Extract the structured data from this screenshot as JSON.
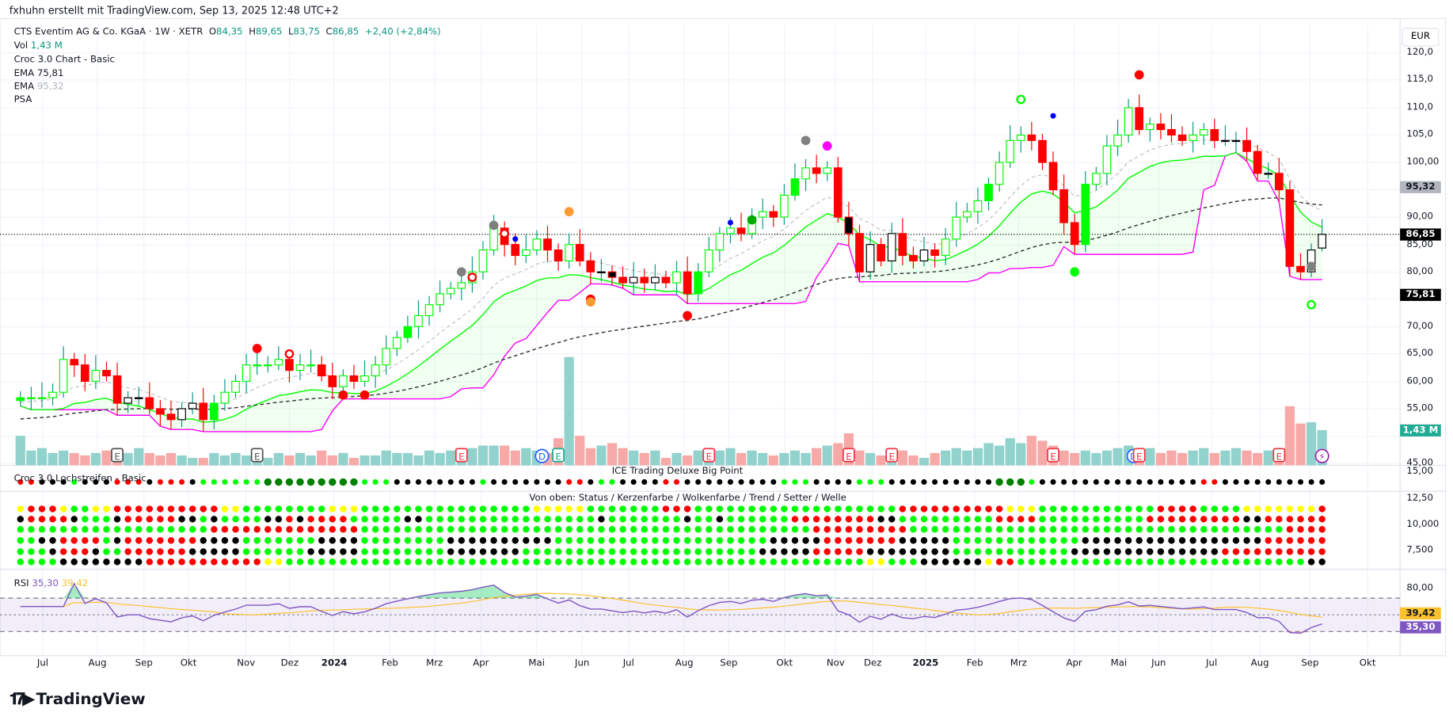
{
  "attribution": "fxhuhn erstellt mit TradingView.com, Sep 13, 2025 12:48 UTC+2",
  "legend": {
    "symbol": "CTS Eventim AG & Co. KGaA · 1W · XETR",
    "o_label": "O",
    "o": "84,35",
    "h_label": "H",
    "h": "89,65",
    "l_label": "L",
    "l": "83,75",
    "c_label": "C",
    "c": "86,85",
    "change": "+2,40 (+2,84%)",
    "vol_label": "Vol",
    "vol": "1,43 M",
    "croc": "Croc 3.0 Chart - Basic",
    "ema1_label": "EMA",
    "ema1": "75,81",
    "ema2_label": "EMA",
    "ema2": "95,32",
    "psa": "PSA"
  },
  "currency": "EUR",
  "price_axis": [
    "120,0",
    "115,0",
    "110,0",
    "105,0",
    "100,00",
    "90,00",
    "85,00",
    "80,00",
    "70,00",
    "65,00",
    "60,00",
    "55,00",
    "45,00"
  ],
  "price_tags": {
    "ema2": "95,32",
    "last": "86,85",
    "ema1": "75,81",
    "vol": "1,43 M"
  },
  "panes": {
    "ice_title": "ICE Trading Deluxe Big Point",
    "loch_title": "Croc 3.0 Lochstreifen - Basic",
    "ice_axis": "15,00",
    "status_title": "Von oben: Status / Kerzenfarbe / Wolkenfarbe / Trend / Setter / Welle",
    "status_axis": [
      "12,50",
      "10,000",
      "7,500"
    ],
    "rsi_label": "RSI",
    "rsi": "35,30",
    "rsi_ma": "39,42",
    "rsi_axis": "80,00"
  },
  "x_axis": [
    "Jul",
    "Aug",
    "Sep",
    "Okt",
    "Nov",
    "Dez",
    "2024",
    "Feb",
    "Mrz",
    "Apr",
    "Mai",
    "Jun",
    "Jul",
    "Aug",
    "Sep",
    "Okt",
    "Nov",
    "Dez",
    "2025",
    "Feb",
    "Mrz",
    "Apr",
    "Mai",
    "Jun",
    "Jul",
    "Aug",
    "Sep",
    "Okt"
  ],
  "brand": "TradingView",
  "colors": {
    "up": "#089981",
    "red": "#ff0000",
    "green": "#00ff00",
    "black": "#000000",
    "yellow": "#ffff00",
    "magenta": "#ff00ff",
    "rsi": "#7e57c2",
    "rsi_ma": "#fbc02d",
    "vol_up": "#92d2cc",
    "vol_down": "#f7a9a7"
  },
  "chart_data": {
    "type": "candlestick",
    "ylim": [
      45,
      120
    ],
    "closes": [
      57,
      57,
      57,
      58,
      64,
      63,
      60,
      62,
      61,
      56,
      57,
      57,
      55,
      54,
      53,
      55,
      56,
      53,
      56,
      58,
      60,
      63,
      63,
      63,
      64,
      62,
      63,
      63,
      61,
      59,
      61,
      60,
      61,
      63,
      66,
      68,
      70,
      72,
      74,
      76,
      77,
      78,
      80,
      84,
      88,
      85,
      83,
      84,
      86,
      84,
      82,
      85,
      82,
      80,
      80,
      79,
      78,
      79,
      78,
      79,
      78,
      80,
      76,
      80,
      84,
      87,
      88,
      87,
      90,
      91,
      90,
      94,
      97,
      99,
      98,
      99,
      90,
      87,
      80,
      85,
      82,
      87,
      83,
      82,
      84,
      83,
      86,
      90,
      91,
      93,
      96,
      100,
      104,
      105,
      104,
      100,
      95,
      89,
      85,
      96,
      98,
      103,
      105,
      110,
      106,
      107,
      106,
      105,
      104,
      105,
      106,
      104,
      104,
      104,
      102,
      98,
      98,
      95,
      81,
      80,
      84,
      86.85
    ],
    "last_ohlc": {
      "o": 84.35,
      "h": 89.65,
      "l": 83.75,
      "c": 86.85
    },
    "volume_m": [
      1.2,
      0.6,
      0.7,
      0.5,
      0.6,
      0.5,
      0.4,
      0.5,
      0.6,
      0.4,
      0.5,
      0.7,
      0.5,
      0.4,
      0.5,
      0.4,
      0.3,
      0.3,
      0.5,
      0.4,
      0.5,
      0.4,
      0.4,
      0.3,
      0.5,
      0.4,
      0.5,
      0.4,
      0.6,
      0.4,
      0.5,
      0.3,
      0.4,
      0.4,
      0.6,
      0.5,
      0.5,
      0.4,
      0.6,
      0.5,
      0.6,
      0.7,
      0.7,
      0.8,
      0.8,
      0.8,
      0.6,
      0.7,
      0.6,
      0.5,
      1.1,
      4.4,
      1.2,
      0.7,
      0.8,
      0.9,
      0.7,
      0.6,
      0.5,
      0.6,
      0.3,
      0.5,
      0.4,
      0.6,
      0.5,
      0.6,
      0.7,
      0.5,
      0.6,
      0.5,
      0.4,
      0.5,
      0.6,
      0.5,
      0.7,
      0.8,
      0.9,
      1.3,
      0.6,
      0.5,
      0.4,
      0.5,
      0.6,
      0.4,
      0.3,
      0.5,
      0.6,
      0.7,
      0.6,
      0.7,
      0.9,
      0.8,
      1.1,
      0.9,
      1.2,
      1.0,
      0.8,
      0.6,
      0.5,
      0.6,
      0.5,
      0.6,
      0.7,
      0.8,
      0.6,
      0.7,
      0.5,
      0.6,
      0.5,
      0.6,
      0.7,
      0.5,
      0.6,
      0.7,
      0.6,
      0.5,
      0.6,
      0.6,
      2.4,
      1.7,
      1.75,
      1.43
    ],
    "events": [
      {
        "i": 9,
        "t": "E"
      },
      {
        "i": 22,
        "t": "E"
      },
      {
        "i": 41,
        "t": "E"
      },
      {
        "i": 49,
        "t": "D"
      },
      {
        "i": 50,
        "t": "E"
      },
      {
        "i": 64,
        "t": "E"
      },
      {
        "i": 77,
        "t": "E"
      },
      {
        "i": 81,
        "t": "E"
      },
      {
        "i": 96,
        "t": "E"
      },
      {
        "i": 104,
        "t": "D"
      },
      {
        "i": 104,
        "t": "E"
      },
      {
        "i": 117,
        "t": "E"
      },
      {
        "i": 121,
        "t": "⚡"
      }
    ],
    "signals": [
      {
        "i": 22,
        "p": 66,
        "c": "#ff0000"
      },
      {
        "i": 25,
        "p": 65,
        "c": "#ff0000",
        "ring": true
      },
      {
        "i": 30,
        "p": 57.5,
        "c": "#ff0000"
      },
      {
        "i": 32,
        "p": 57.5,
        "c": "#ff0000"
      },
      {
        "i": 41,
        "p": 80,
        "c": "#808080"
      },
      {
        "i": 42,
        "p": 79,
        "c": "#ff0000",
        "ring": true
      },
      {
        "i": 44,
        "p": 88.5,
        "c": "#808080"
      },
      {
        "i": 45,
        "p": 87,
        "c": "#ff0000",
        "ring": true
      },
      {
        "i": 46,
        "p": 86,
        "c": "#0000ff"
      },
      {
        "i": 51,
        "p": 91,
        "c": "#ff9933"
      },
      {
        "i": 53,
        "p": 75,
        "c": "#ff0000"
      },
      {
        "i": 53,
        "p": 74.5,
        "c": "#ff9933"
      },
      {
        "i": 62,
        "p": 72,
        "c": "#ff0000"
      },
      {
        "i": 66,
        "p": 89,
        "c": "#0000ff"
      },
      {
        "i": 68,
        "p": 89.5,
        "c": "#00aa00"
      },
      {
        "i": 73,
        "p": 104,
        "c": "#808080"
      },
      {
        "i": 75,
        "p": 103,
        "c": "#ff00ff"
      },
      {
        "i": 93,
        "p": 111.5,
        "c": "#00ff00",
        "ring": true
      },
      {
        "i": 96,
        "p": 108.5,
        "c": "#0000ff"
      },
      {
        "i": 98,
        "p": 80,
        "c": "#00ff00"
      },
      {
        "i": 104,
        "p": 116,
        "c": "#ff0000"
      },
      {
        "i": 120,
        "p": 81,
        "c": "#808080"
      },
      {
        "i": 120,
        "p": 74,
        "c": "#00ff00",
        "ring": true
      }
    ],
    "ice_dots": "rrkkkgkkkrrrkrrrkggggggGGGGGGGGGgggkkkkkkkkgkkkkkkkrrkggkkkkrrkkkkkkkkkgggkkkkgggkkkkkkkkkkGGGgkkkkkkkkkkkkkkkrrkkkkkkkkkkrrDDr",
    "status_rows": [
      "yrrryggyyrrrrrrrrrryyggggggggyyyggggggggggggggggyyyyygggggggrrrgggggggggggggggggggrrrrrrrrrryyygggggggggggrrrrggggyyyyyyyrrrrrrr",
      "krrrrkgggkrrrrrkkgkggggkkrkrrrrgggggkkggggggggggggggggkgggggggkggkggggggrrrrrrrrkkgggggggggrrrrggggggggggrrrrrrrrrkkrrrrrrrk",
      "ggggggggggggggggggrrrrrrrrrrrrrrggggggggggggggggggggggggggggggggggggggggggrrrrrrrrrgggggggggggggggggggggggggggggggggggrrrrrrrr",
      "ggkkrrrrgkrrrrrrrkkkkgggggggkkkkggggggggkkkkkkkkkkggggggggggggggggggggkkkkkrrrrrrrkkkkkggggggggggggkkkkkkkkkkkkkkkkkrrrrrrrrrr",
      "gggkrrrkggrrrrrrkkkkkggggggkkkkkggggggggkkkkkkkggggggggggggggggggggggkkkkkrrrrrkkkkkkkkgggggggggggkkkkkkkkkkkkkkrrrrrrrrrrrrr",
      "ggggkkkkkkkkrrrrrrrrrrryyggggggggggggggggggggggggggggggggggggggggggggggggggggggyygggkkkkkkyrrgggggggggggggggggggggggggggkkrrr"
    ]
  }
}
